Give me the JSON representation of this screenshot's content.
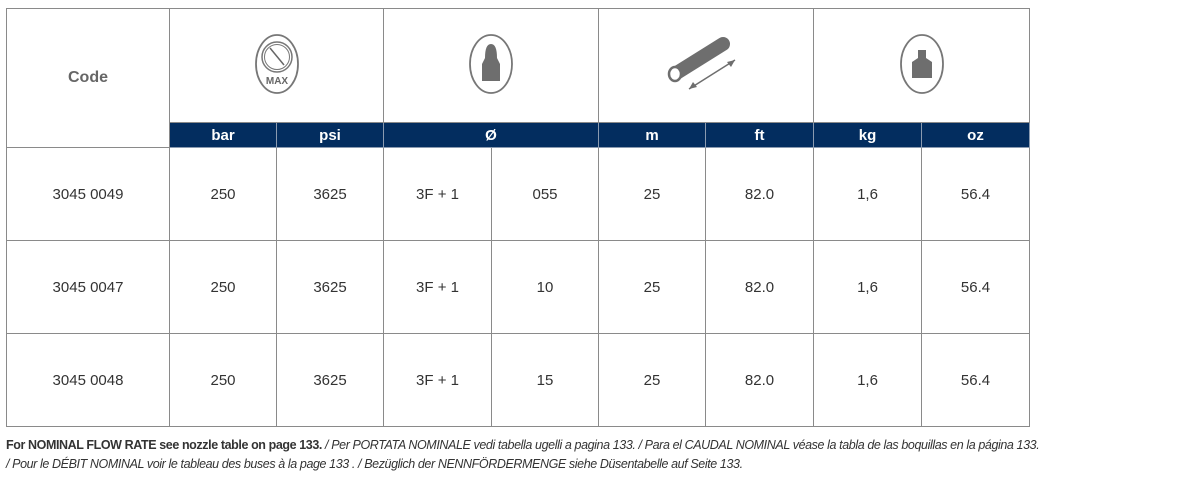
{
  "header": {
    "code_label": "Code",
    "icons": [
      "pressure-gauge-max-icon",
      "nozzle-icon",
      "hose-length-icon",
      "weight-icon"
    ],
    "gauge_text": "MAX",
    "units": [
      "bar",
      "psi",
      "Ø",
      "m",
      "ft",
      "kg",
      "oz"
    ]
  },
  "rows": [
    {
      "code": "3045 0049",
      "bar": "250",
      "psi": "3625",
      "nozzle": "3F + 1",
      "size": "055",
      "m": "25",
      "ft": "82.0",
      "kg": "1,6",
      "oz": "56.4"
    },
    {
      "code": "3045 0047",
      "bar": "250",
      "psi": "3625",
      "nozzle": "3F + 1",
      "size": "10",
      "m": "25",
      "ft": "82.0",
      "kg": "1,6",
      "oz": "56.4"
    },
    {
      "code": "3045 0048",
      "bar": "250",
      "psi": "3625",
      "nozzle": "3F + 1",
      "size": "15",
      "m": "25",
      "ft": "82.0",
      "kg": "1,6",
      "oz": "56.4"
    }
  ],
  "footnote": {
    "en": "For NOMINAL FLOW RATE see nozzle table on page 133.",
    "it": " / Per PORTATA NOMINALE vedi tabella ugelli a pagina 133.",
    "es": " / Para el CAUDAL NOMINAL véase la tabla de las boquillas en la página 133.",
    "fr": "/ Pour le DÉBIT NOMINAL voir le tableau des buses à la page 133 .",
    "de": " / Bezüglich der NENNFÖRDERMENGE siehe Düsentabelle auf Seite 133."
  },
  "colors": {
    "header_blue": "#032d5f",
    "icon_gray": "#6e6e6e"
  }
}
